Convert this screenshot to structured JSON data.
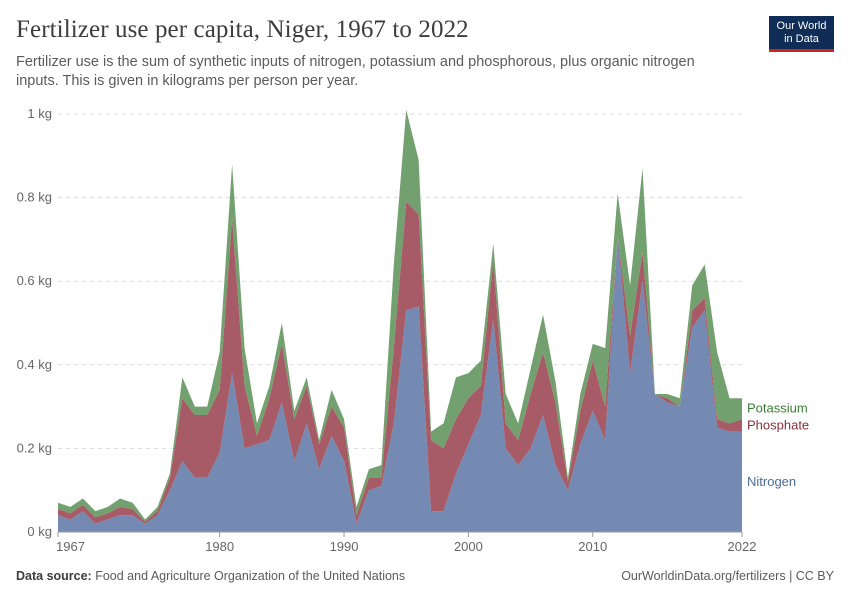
{
  "header": {
    "title": "Fertilizer use per capita, Niger, 1967 to 2022",
    "subtitle": "Fertilizer use is the sum of synthetic inputs of nitrogen, potassium and phosphorous, plus organic nitrogen inputs. This is given in kilograms per person per year.",
    "logo_line1": "Our World",
    "logo_line2": "in Data"
  },
  "footer": {
    "source_label": "Data source:",
    "source_text": "Food and Agriculture Organization of the United Nations",
    "url_text": "OurWorldinData.org/fertilizers | CC BY"
  },
  "chart_data": {
    "type": "area",
    "stacked": true,
    "x": [
      1967,
      1968,
      1969,
      1970,
      1971,
      1972,
      1973,
      1974,
      1975,
      1976,
      1977,
      1978,
      1979,
      1980,
      1981,
      1982,
      1983,
      1984,
      1985,
      1986,
      1987,
      1988,
      1989,
      1990,
      1991,
      1992,
      1993,
      1994,
      1995,
      1996,
      1997,
      1998,
      1999,
      2000,
      2001,
      2002,
      2003,
      2004,
      2005,
      2006,
      2007,
      2008,
      2009,
      2010,
      2011,
      2012,
      2013,
      2014,
      2015,
      2016,
      2017,
      2018,
      2019,
      2020,
      2021,
      2022
    ],
    "series": [
      {
        "name": "Nitrogen",
        "color": "#6d84ae",
        "values": [
          0.04,
          0.03,
          0.05,
          0.02,
          0.03,
          0.04,
          0.04,
          0.02,
          0.04,
          0.1,
          0.17,
          0.13,
          0.13,
          0.19,
          0.38,
          0.2,
          0.21,
          0.22,
          0.31,
          0.17,
          0.26,
          0.15,
          0.23,
          0.17,
          0.02,
          0.1,
          0.11,
          0.26,
          0.53,
          0.54,
          0.05,
          0.05,
          0.14,
          0.21,
          0.28,
          0.51,
          0.2,
          0.16,
          0.2,
          0.28,
          0.16,
          0.1,
          0.21,
          0.29,
          0.22,
          0.71,
          0.38,
          0.6,
          0.33,
          0.31,
          0.3,
          0.49,
          0.53,
          0.25,
          0.24,
          0.24
        ]
      },
      {
        "name": "Phosphate",
        "color": "#a2525e",
        "values": [
          0.015,
          0.015,
          0.015,
          0.015,
          0.015,
          0.02,
          0.015,
          0.005,
          0.01,
          0.03,
          0.15,
          0.15,
          0.15,
          0.15,
          0.37,
          0.15,
          0.02,
          0.1,
          0.14,
          0.1,
          0.09,
          0.06,
          0.07,
          0.08,
          0.02,
          0.03,
          0.02,
          0.18,
          0.26,
          0.22,
          0.17,
          0.15,
          0.13,
          0.11,
          0.07,
          0.14,
          0.06,
          0.06,
          0.13,
          0.15,
          0.15,
          0.02,
          0.08,
          0.12,
          0.08,
          0.0,
          0.09,
          0.07,
          0.0,
          0.01,
          0.0,
          0.04,
          0.03,
          0.02,
          0.02,
          0.03
        ]
      },
      {
        "name": "Potassium",
        "color": "#6b9b67",
        "values": [
          0.015,
          0.015,
          0.015,
          0.015,
          0.015,
          0.02,
          0.015,
          0.005,
          0.01,
          0.01,
          0.05,
          0.02,
          0.02,
          0.09,
          0.13,
          0.09,
          0.03,
          0.03,
          0.05,
          0.02,
          0.02,
          0.01,
          0.04,
          0.02,
          0.02,
          0.02,
          0.03,
          0.2,
          0.22,
          0.13,
          0.02,
          0.06,
          0.1,
          0.06,
          0.06,
          0.04,
          0.07,
          0.04,
          0.06,
          0.09,
          0.05,
          0.01,
          0.04,
          0.04,
          0.14,
          0.1,
          0.12,
          0.2,
          0.0,
          0.01,
          0.02,
          0.06,
          0.08,
          0.16,
          0.06,
          0.05
        ]
      }
    ],
    "ylim": [
      0,
      1
    ],
    "y_ticks": [
      0,
      0.2,
      0.4,
      0.6,
      0.8,
      1
    ],
    "y_tick_labels": [
      "0 kg",
      "0.2 kg",
      "0.4 kg",
      "0.6 kg",
      "0.8 kg",
      "1 kg"
    ],
    "x_ticks": [
      1967,
      1980,
      1990,
      2000,
      2010,
      2022
    ],
    "x_tick_labels": [
      "1967",
      "1980",
      "1990",
      "2000",
      "2010",
      "2022"
    ],
    "grid": true,
    "legend": "right-end labels"
  }
}
